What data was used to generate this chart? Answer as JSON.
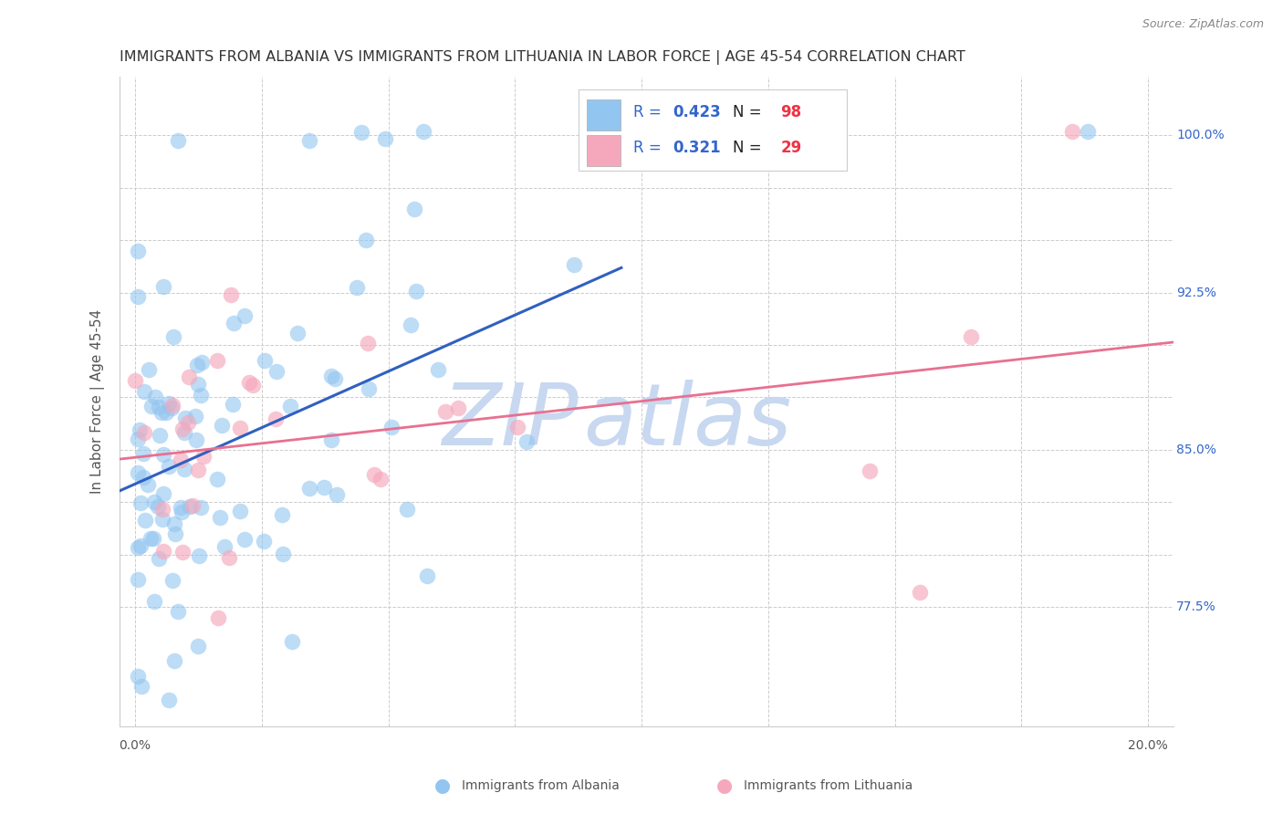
{
  "title": "IMMIGRANTS FROM ALBANIA VS IMMIGRANTS FROM LITHUANIA IN LABOR FORCE | AGE 45-54 CORRELATION CHART",
  "source": "Source: ZipAtlas.com",
  "ylabel": "In Labor Force | Age 45-54",
  "ylim": [
    0.718,
    1.028
  ],
  "xlim": [
    -0.003,
    0.205
  ],
  "ytick_vals": [
    0.775,
    0.8,
    0.825,
    0.85,
    0.875,
    0.9,
    0.925,
    0.95,
    0.975,
    1.0
  ],
  "ytick_labeled": {
    "0.775": "77.5%",
    "0.850": "85.0%",
    "0.925": "92.5%",
    "1.000": "100.0%"
  },
  "xtick_vals": [
    0.0,
    0.025,
    0.05,
    0.075,
    0.1,
    0.125,
    0.15,
    0.175,
    0.2
  ],
  "color_albania": "#92C5F0",
  "color_lithuania": "#F5A8BC",
  "color_line_albania": "#3060C0",
  "color_line_lithuania": "#E87090",
  "color_legend_text": "#3366CC",
  "color_axis_label": "#3366CC",
  "color_title": "#333333",
  "color_source": "#888888",
  "color_grid": "#CCCCCC",
  "color_watermark_zip": "#C8D8F0",
  "color_watermark_atlas": "#C8D8F0",
  "legend_r1": "R = ",
  "legend_v1": "0.423",
  "legend_n1": "  N = ",
  "legend_nv1": "98",
  "legend_r2": "R = ",
  "legend_v2": "0.321",
  "legend_n2": "  N = ",
  "legend_nv2": "29",
  "seed": 1234,
  "n_albania": 98,
  "n_lithuania": 29
}
